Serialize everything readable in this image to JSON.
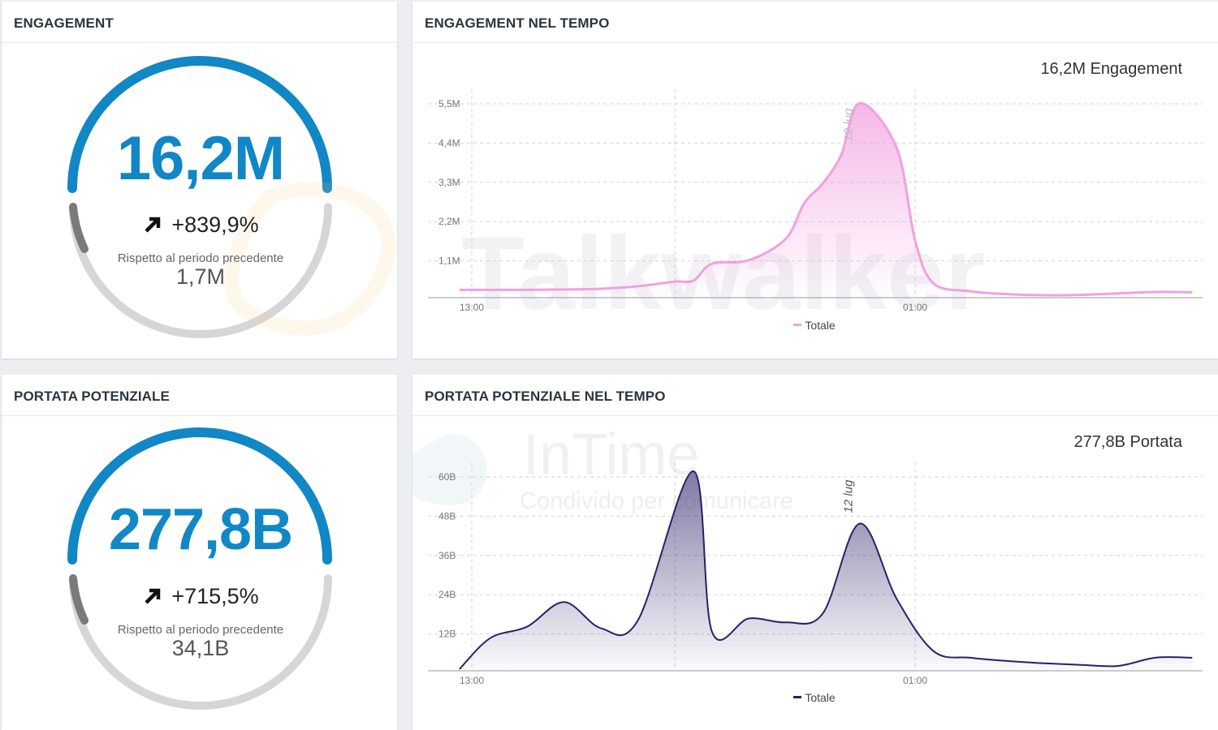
{
  "panels": {
    "engagement": {
      "title": "ENGAGEMENT",
      "value": "16,2M",
      "change": "+839,9%",
      "compare_label": "Rispetto al periodo precedente",
      "compare_value": "1,7M",
      "progress": 0.16
    },
    "engagement_time": {
      "title": "ENGAGEMENT NEL TEMPO",
      "total": "16,2M Engagement",
      "annotation": "12 lug",
      "legend": "Totale"
    },
    "reach": {
      "title": "PORTATA POTENZIALE",
      "value": "277,8B",
      "change": "+715,5%",
      "compare_label": "Rispetto al periodo precedente",
      "compare_value": "34,1B",
      "progress": 0.16
    },
    "reach_time": {
      "title": "PORTATA POTENZIALE NEL TEMPO",
      "total": "277,8B Portata",
      "annotation": "12 lug",
      "legend": "Totale"
    }
  },
  "watermarks": {
    "brand": "Talkwalker",
    "intime": "InTime",
    "intime_tagline": "Condivido per comunicare"
  },
  "colors": {
    "accent": "#1187c5",
    "gauge_track": "#d6d6d6",
    "gauge_progress": "#7a7a7a",
    "engagement_line": "#f2a0e0",
    "reach_line": "#2a2068"
  },
  "chart_data": [
    {
      "type": "area",
      "title": "ENGAGEMENT NEL TEMPO",
      "series": [
        {
          "name": "Totale",
          "values": [
            0.22,
            0.22,
            0.22,
            0.23,
            0.25,
            0.32,
            0.45,
            0.48,
            0.95,
            1.05,
            1.65,
            2.65,
            3.2,
            4.0,
            5.45,
            4.2,
            1.6,
            0.4,
            0.18,
            0.1,
            0.07,
            0.08,
            0.12,
            0.16,
            0.15
          ]
        }
      ],
      "x": [
        "12:40",
        "13:30",
        "14:30",
        "15:30",
        "16:30",
        "17:30",
        "18:30",
        "19:00",
        "19:30",
        "20:30",
        "21:30",
        "22:00",
        "22:30",
        "23:00",
        "23:30",
        "00:30",
        "01:00",
        "01:30",
        "02:30",
        "03:30",
        "04:30",
        "05:30",
        "06:30",
        "07:30",
        "08:30"
      ],
      "x_ticks": [
        "13:00",
        "01:00"
      ],
      "y_ticks": [
        "1,1M",
        "2,2M",
        "3,3M",
        "4,4M",
        "5,5M"
      ],
      "ylim": [
        0,
        5.5
      ],
      "annotations": [
        "12 lug"
      ],
      "legend": "bottom"
    },
    {
      "type": "area",
      "title": "PORTATA POTENZIALE NEL TEMPO",
      "series": [
        {
          "name": "Totale",
          "values": [
            0.5,
            10,
            13.5,
            21,
            13,
            15.5,
            61,
            12,
            16,
            14.8,
            17.5,
            45,
            22,
            6,
            4,
            3,
            2.3,
            1.8,
            1.5,
            4,
            4
          ]
        }
      ],
      "x": [
        "12:40",
        "13:30",
        "14:30",
        "15:30",
        "16:30",
        "17:30",
        "19:00",
        "19:30",
        "20:30",
        "21:30",
        "22:30",
        "23:30",
        "00:30",
        "01:30",
        "02:30",
        "03:30",
        "04:30",
        "05:30",
        "06:30",
        "07:30",
        "08:30"
      ],
      "x_ticks": [
        "13:00",
        "01:00"
      ],
      "y_ticks": [
        "12B",
        "24B",
        "36B",
        "48B",
        "60B"
      ],
      "ylim": [
        0,
        60
      ],
      "annotations": [
        "12 lug"
      ],
      "legend": "bottom"
    }
  ]
}
